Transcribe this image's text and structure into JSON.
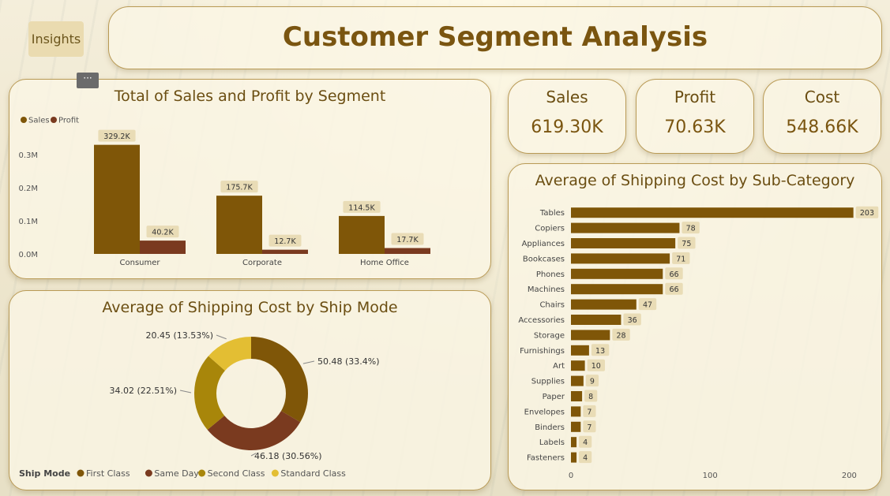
{
  "header": {
    "insights_label": "Insights",
    "title": "Customer Segment Analysis",
    "more_label": "···"
  },
  "kpis": [
    {
      "label": "Sales",
      "value": "619.30K"
    },
    {
      "label": "Profit",
      "value": "70.63K"
    },
    {
      "label": "Cost",
      "value": "548.66K"
    }
  ],
  "colors": {
    "sales": "#7f5608",
    "profit": "#7a3a1f",
    "first_class": "#7f5608",
    "same_day": "#7a3a1f",
    "second_class": "#a8860a",
    "standard_class": "#e3be33",
    "label_bg": "#e9dcb6"
  },
  "chart_data": [
    {
      "type": "bar",
      "title": "Total of Sales and Profit by Segment",
      "categories": [
        "Consumer",
        "Corporate",
        "Home Office"
      ],
      "series": [
        {
          "name": "Sales",
          "values": [
            329200,
            175700,
            114500
          ],
          "labels": [
            "329.2K",
            "175.7K",
            "114.5K"
          ]
        },
        {
          "name": "Profit",
          "values": [
            40200,
            12700,
            17700
          ],
          "labels": [
            "40.2K",
            "12.7K",
            "17.7K"
          ]
        }
      ],
      "yticks": [
        0,
        100000,
        200000,
        300000
      ],
      "ytick_labels": [
        "0.0M",
        "0.1M",
        "0.2M",
        "0.3M"
      ],
      "ylim": [
        0,
        345000
      ],
      "legend": "top-left",
      "grid": false
    },
    {
      "type": "pie",
      "title": "Average of Shipping Cost by Ship Mode",
      "legend_title": "Ship Mode",
      "categories": [
        "First Class",
        "Same Day",
        "Second Class",
        "Standard Class"
      ],
      "values": [
        50.48,
        46.18,
        34.02,
        20.45
      ],
      "labels": [
        "50.48 (33.4%)",
        "46.18 (30.56%)",
        "34.02 (22.51%)",
        "20.45 (13.53%)"
      ],
      "legend": "bottom-left"
    },
    {
      "type": "bar",
      "orientation": "horizontal",
      "title": "Average of Shipping Cost by Sub-Category",
      "categories": [
        "Tables",
        "Copiers",
        "Appliances",
        "Bookcases",
        "Phones",
        "Machines",
        "Chairs",
        "Accessories",
        "Storage",
        "Furnishings",
        "Art",
        "Supplies",
        "Paper",
        "Envelopes",
        "Binders",
        "Labels",
        "Fasteners"
      ],
      "values": [
        203,
        78,
        75,
        71,
        66,
        66,
        47,
        36,
        28,
        13,
        10,
        9,
        8,
        7,
        7,
        4,
        4
      ],
      "xticks": [
        0,
        100,
        200
      ],
      "xlim": [
        0,
        210
      ],
      "grid": false
    }
  ]
}
